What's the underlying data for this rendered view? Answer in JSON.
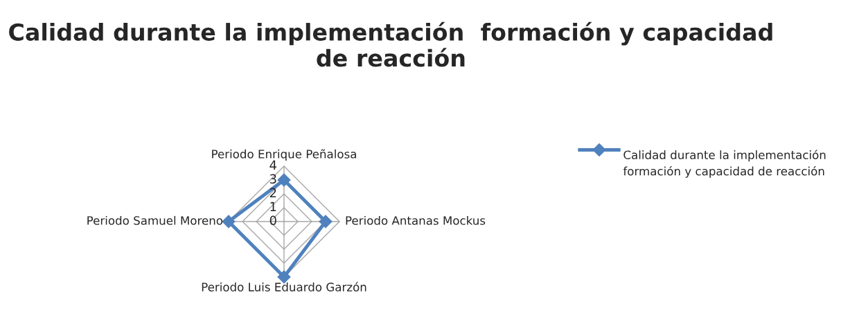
{
  "chart_data": {
    "type": "radar",
    "title": "Calidad durante la implementación  formación y capacidad de reacción",
    "categories": [
      "Periodo Enrique Peñalosa",
      "Periodo Antanas Mockus",
      "Periodo Luis Eduardo Garzón",
      "Periodo Samuel Moreno"
    ],
    "series": [
      {
        "name": "Calidad durante la implementación  formación y capacidad de reacción",
        "color": "#4f81bd",
        "values": [
          3,
          3,
          4,
          4
        ]
      }
    ],
    "ylim": [
      0,
      4
    ],
    "yticks": [
      0,
      1,
      2,
      3,
      4
    ],
    "grid": true,
    "legend": "right",
    "marker": "diamond",
    "line_style": "solid"
  }
}
